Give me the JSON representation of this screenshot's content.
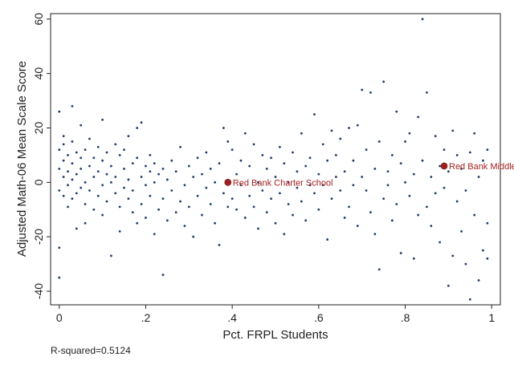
{
  "chart_data": {
    "type": "scatter",
    "xlabel": "Pct. FRPL Students",
    "ylabel": "Adjusted Math-06 Mean Scale Score",
    "xlim": [
      -0.02,
      1.02
    ],
    "ylim": [
      -45,
      62
    ],
    "xticks": [
      0,
      0.2,
      0.4,
      0.6,
      0.8,
      1
    ],
    "xtick_labels": [
      "0",
      ".2",
      ".4",
      ".6",
      ".8",
      "1"
    ],
    "yticks": [
      -40,
      -20,
      0,
      20,
      40,
      60
    ],
    "ytick_labels": [
      "-40",
      "-20",
      "0",
      "20",
      "40",
      "60"
    ],
    "grid": false,
    "note": "R-squared=0.5124",
    "colors": {
      "points": "#1f3b6b",
      "highlight": "#a31f1f",
      "axis": "#222222"
    },
    "highlights": [
      {
        "label": "Red Bank Charter School",
        "x": 0.39,
        "y": 0
      },
      {
        "label": "Red Bank Middle",
        "x": 0.89,
        "y": 6
      }
    ],
    "points": [
      [
        0.0,
        5
      ],
      [
        0.0,
        12
      ],
      [
        0.0,
        -3
      ],
      [
        0.0,
        26
      ],
      [
        0.0,
        -24
      ],
      [
        0.0,
        -35
      ],
      [
        0.01,
        8
      ],
      [
        0.01,
        2
      ],
      [
        0.01,
        -5
      ],
      [
        0.01,
        14
      ],
      [
        0.01,
        17
      ],
      [
        0.02,
        10
      ],
      [
        0.02,
        -9
      ],
      [
        0.02,
        4
      ],
      [
        0.02,
        -1
      ],
      [
        0.03,
        7
      ],
      [
        0.03,
        -6
      ],
      [
        0.03,
        15
      ],
      [
        0.03,
        1
      ],
      [
        0.03,
        28
      ],
      [
        0.04,
        11
      ],
      [
        0.04,
        -4
      ],
      [
        0.04,
        3
      ],
      [
        0.04,
        -17
      ],
      [
        0.05,
        9
      ],
      [
        0.05,
        -2
      ],
      [
        0.05,
        21
      ],
      [
        0.05,
        5
      ],
      [
        0.06,
        -8
      ],
      [
        0.06,
        12
      ],
      [
        0.06,
        0
      ],
      [
        0.06,
        -15
      ],
      [
        0.07,
        6
      ],
      [
        0.07,
        -3
      ],
      [
        0.07,
        16
      ],
      [
        0.08,
        2
      ],
      [
        0.08,
        -10
      ],
      [
        0.08,
        9
      ],
      [
        0.09,
        13
      ],
      [
        0.09,
        -5
      ],
      [
        0.09,
        4
      ],
      [
        0.1,
        -1
      ],
      [
        0.1,
        8
      ],
      [
        0.1,
        -12
      ],
      [
        0.1,
        23
      ],
      [
        0.11,
        3
      ],
      [
        0.11,
        -7
      ],
      [
        0.11,
        11
      ],
      [
        0.12,
        0
      ],
      [
        0.12,
        -27
      ],
      [
        0.12,
        6
      ],
      [
        0.13,
        14
      ],
      [
        0.13,
        -4
      ],
      [
        0.13,
        2
      ],
      [
        0.14,
        -9
      ],
      [
        0.14,
        10
      ],
      [
        0.14,
        -18
      ],
      [
        0.15,
        5
      ],
      [
        0.15,
        -2
      ],
      [
        0.15,
        12
      ],
      [
        0.16,
        -6
      ],
      [
        0.16,
        1
      ],
      [
        0.16,
        17
      ],
      [
        0.17,
        -11
      ],
      [
        0.17,
        7
      ],
      [
        0.17,
        -3
      ],
      [
        0.18,
        9
      ],
      [
        0.18,
        -15
      ],
      [
        0.18,
        20
      ],
      [
        0.19,
        2
      ],
      [
        0.19,
        -8
      ],
      [
        0.19,
        22
      ],
      [
        0.2,
        -1
      ],
      [
        0.2,
        6
      ],
      [
        0.2,
        -13
      ],
      [
        0.21,
        4
      ],
      [
        0.21,
        -5
      ],
      [
        0.21,
        10
      ],
      [
        0.22,
        -19
      ],
      [
        0.22,
        0
      ],
      [
        0.22,
        7
      ],
      [
        0.23,
        -10
      ],
      [
        0.23,
        3
      ],
      [
        0.24,
        -34
      ],
      [
        0.24,
        5
      ],
      [
        0.24,
        -6
      ],
      [
        0.25,
        1
      ],
      [
        0.25,
        -14
      ],
      [
        0.26,
        8
      ],
      [
        0.26,
        -3
      ],
      [
        0.27,
        -11
      ],
      [
        0.27,
        4
      ],
      [
        0.28,
        -7
      ],
      [
        0.28,
        13
      ],
      [
        0.29,
        -1
      ],
      [
        0.29,
        -16
      ],
      [
        0.3,
        6
      ],
      [
        0.3,
        -9
      ],
      [
        0.31,
        2
      ],
      [
        0.31,
        -20
      ],
      [
        0.32,
        9
      ],
      [
        0.32,
        -5
      ],
      [
        0.33,
        -12
      ],
      [
        0.33,
        3
      ],
      [
        0.34,
        -2
      ],
      [
        0.34,
        11
      ],
      [
        0.35,
        -8
      ],
      [
        0.35,
        5
      ],
      [
        0.36,
        0
      ],
      [
        0.36,
        -15
      ],
      [
        0.37,
        -23
      ],
      [
        0.37,
        7
      ],
      [
        0.38,
        20
      ],
      [
        0.38,
        -4
      ],
      [
        0.39,
        15
      ],
      [
        0.39,
        -9
      ],
      [
        0.4,
        -6
      ],
      [
        0.4,
        12
      ],
      [
        0.41,
        3
      ],
      [
        0.41,
        -10
      ],
      [
        0.42,
        -1
      ],
      [
        0.42,
        8
      ],
      [
        0.43,
        -13
      ],
      [
        0.43,
        18
      ],
      [
        0.44,
        -5
      ],
      [
        0.44,
        6
      ],
      [
        0.45,
        -9
      ],
      [
        0.45,
        14
      ],
      [
        0.46,
        0
      ],
      [
        0.46,
        -17
      ],
      [
        0.47,
        10
      ],
      [
        0.47,
        -3
      ],
      [
        0.48,
        5
      ],
      [
        0.48,
        -11
      ],
      [
        0.49,
        -6
      ],
      [
        0.49,
        9
      ],
      [
        0.5,
        -15
      ],
      [
        0.5,
        2
      ],
      [
        0.51,
        13
      ],
      [
        0.51,
        -4
      ],
      [
        0.52,
        -19
      ],
      [
        0.52,
        7
      ],
      [
        0.53,
        0
      ],
      [
        0.53,
        -8
      ],
      [
        0.54,
        11
      ],
      [
        0.54,
        -12
      ],
      [
        0.55,
        4
      ],
      [
        0.55,
        -2
      ],
      [
        0.56,
        18
      ],
      [
        0.56,
        -7
      ],
      [
        0.57,
        6
      ],
      [
        0.57,
        -14
      ],
      [
        0.58,
        -1
      ],
      [
        0.58,
        9
      ],
      [
        0.59,
        25
      ],
      [
        0.59,
        -4
      ],
      [
        0.6,
        3
      ],
      [
        0.6,
        -10
      ],
      [
        0.61,
        14
      ],
      [
        0.61,
        -1
      ],
      [
        0.62,
        8
      ],
      [
        0.62,
        -21
      ],
      [
        0.63,
        19
      ],
      [
        0.63,
        -6
      ],
      [
        0.64,
        10
      ],
      [
        0.64,
        2
      ],
      [
        0.65,
        -3
      ],
      [
        0.65,
        16
      ],
      [
        0.66,
        4
      ],
      [
        0.66,
        -13
      ],
      [
        0.67,
        20
      ],
      [
        0.67,
        -9
      ],
      [
        0.68,
        8
      ],
      [
        0.68,
        -1
      ],
      [
        0.69,
        -16
      ],
      [
        0.69,
        21
      ],
      [
        0.7,
        34
      ],
      [
        0.7,
        2
      ],
      [
        0.71,
        -3
      ],
      [
        0.71,
        12
      ],
      [
        0.72,
        33
      ],
      [
        0.72,
        -11
      ],
      [
        0.73,
        -19
      ],
      [
        0.73,
        5
      ],
      [
        0.74,
        -32
      ],
      [
        0.74,
        15
      ],
      [
        0.75,
        -6
      ],
      [
        0.75,
        37
      ],
      [
        0.76,
        4
      ],
      [
        0.76,
        -1
      ],
      [
        0.77,
        10
      ],
      [
        0.77,
        -14
      ],
      [
        0.78,
        26
      ],
      [
        0.78,
        -8
      ],
      [
        0.79,
        7
      ],
      [
        0.79,
        -26
      ],
      [
        0.8,
        15
      ],
      [
        0.8,
        0
      ],
      [
        0.81,
        -5
      ],
      [
        0.81,
        18
      ],
      [
        0.82,
        -28
      ],
      [
        0.82,
        3
      ],
      [
        0.83,
        -12
      ],
      [
        0.83,
        24
      ],
      [
        0.84,
        60
      ],
      [
        0.84,
        8
      ],
      [
        0.85,
        -9
      ],
      [
        0.85,
        33
      ],
      [
        0.86,
        2
      ],
      [
        0.86,
        -16
      ],
      [
        0.87,
        17
      ],
      [
        0.87,
        -4
      ],
      [
        0.88,
        6
      ],
      [
        0.88,
        -22
      ],
      [
        0.89,
        12
      ],
      [
        0.89,
        -2
      ],
      [
        0.9,
        -38
      ],
      [
        0.9,
        4
      ],
      [
        0.91,
        -27
      ],
      [
        0.91,
        19
      ],
      [
        0.92,
        -7
      ],
      [
        0.92,
        10
      ],
      [
        0.93,
        -18
      ],
      [
        0.93,
        5
      ],
      [
        0.94,
        -30
      ],
      [
        0.94,
        -3
      ],
      [
        0.95,
        11
      ],
      [
        0.95,
        -43
      ],
      [
        0.96,
        -12
      ],
      [
        0.96,
        18
      ],
      [
        0.97,
        -36
      ],
      [
        0.97,
        2
      ],
      [
        0.98,
        -25
      ],
      [
        0.98,
        8
      ],
      [
        0.99,
        -15
      ],
      [
        0.99,
        12
      ],
      [
        0.99,
        -28
      ]
    ]
  }
}
